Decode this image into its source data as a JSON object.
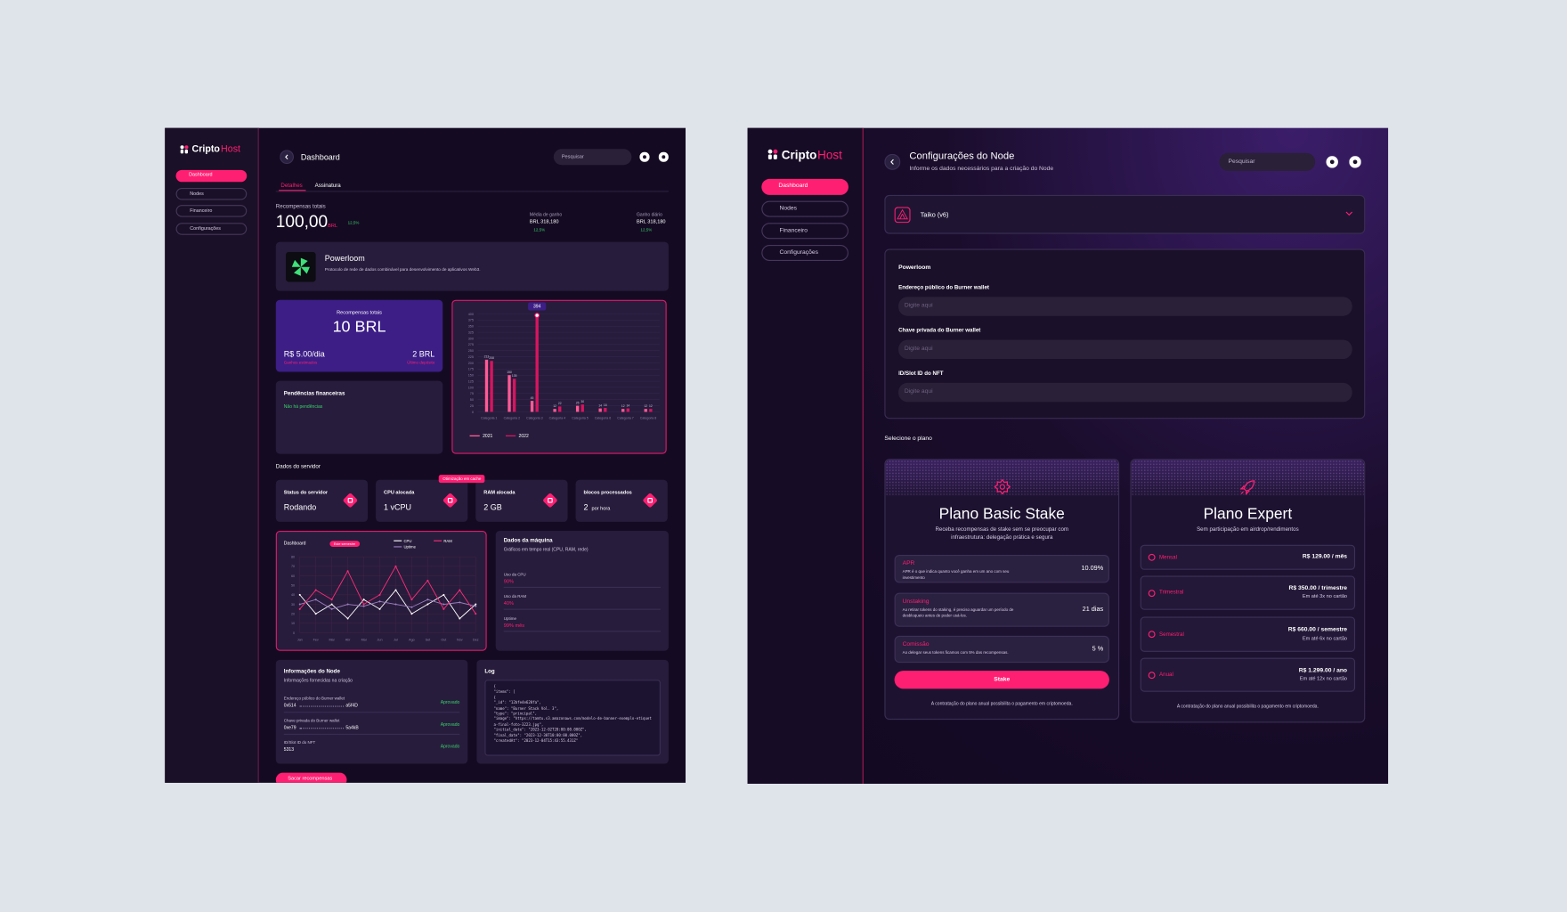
{
  "left": {
    "brand": {
      "name": "Cripto",
      "accent": "Host"
    },
    "nav": [
      "Dashboard",
      "Nodes",
      "Financeiro",
      "Configurações"
    ],
    "header": {
      "title": "Dashboard",
      "search": "Pesquisar"
    },
    "tabs": [
      "Detalhes",
      "Assinatura"
    ],
    "summary": {
      "label": "Recompensas totais",
      "value": "100,00",
      "unit": "BRL",
      "change": "12,5%",
      "stats": [
        {
          "label": "Média de ganho",
          "value": "BRL 318,180",
          "change": "12,5%"
        },
        {
          "label": "Ganho diário",
          "value": "BRL 318,180",
          "change": "12,5%"
        }
      ]
    },
    "project": {
      "name": "Powerloom",
      "description": "Protocolo de rede de dados combinável para desenvolvimento de aplicativos Web3."
    },
    "rewards": {
      "label": "Recompensas totais",
      "value": "10 BRL",
      "per_day": "R$ 5.00/dia",
      "per_day_note": "Ganhos estimados",
      "last": "2 BRL",
      "last_note": "Último depósito"
    },
    "pending": {
      "title": "Pendências financeiras",
      "status": "Não há pendências"
    },
    "bar_chart": {
      "type": "bar",
      "categories": [
        "Categoria 1",
        "Categoria 2",
        "Categoria 3",
        "Categoria 4",
        "Categoria 5",
        "Categoria 6",
        "Categoria 7",
        "Categoria 8"
      ],
      "series": [
        {
          "name": "2021",
          "color": "#ff5a96",
          "values": [
            213,
            150,
            45,
            12,
            25,
            14,
            12,
            12
          ]
        },
        {
          "name": "2022",
          "color": "#d8145f",
          "values": [
            208,
            135,
            394,
            22,
            30,
            16,
            14,
            12
          ]
        }
      ],
      "ylim": [
        0,
        400
      ],
      "yticks": [
        0,
        25,
        50,
        75,
        100,
        125,
        150,
        175,
        200,
        225,
        250,
        275,
        300,
        325,
        350,
        375,
        400
      ],
      "grid": true
    },
    "server": {
      "title": "Dados do servidor",
      "badge": "Otimização em cache",
      "cards": [
        {
          "label": "Status do servidor",
          "value": "Rodando"
        },
        {
          "label": "CPU alocada",
          "value": "1 vCPU"
        },
        {
          "label": "RAM alocada",
          "value": "2 GB"
        },
        {
          "label": "blocos processados",
          "value": "2",
          "unit": "por hora"
        }
      ]
    },
    "line_chart": {
      "type": "line",
      "title": "Dashboard",
      "period": "Este semestre",
      "categories": [
        "Jan",
        "Fev",
        "Mar",
        "Abr",
        "Mai",
        "Jun",
        "Jul",
        "Ago",
        "Set",
        "Out",
        "Nov",
        "Dez"
      ],
      "series": [
        {
          "name": "CPU",
          "color": "#ffffff",
          "values": [
            40,
            20,
            30,
            15,
            35,
            25,
            45,
            20,
            30,
            40,
            15,
            30
          ]
        },
        {
          "name": "Uptime",
          "color": "#9b7fc0",
          "values": [
            30,
            35,
            25,
            30,
            28,
            33,
            30,
            27,
            35,
            30,
            32,
            28
          ]
        },
        {
          "name": "RAM",
          "color": "#ff2d7a",
          "values": [
            25,
            45,
            35,
            65,
            30,
            40,
            70,
            35,
            55,
            25,
            45,
            20
          ]
        }
      ],
      "ylim": [
        0,
        80
      ],
      "yticks": [
        0,
        10,
        20,
        30,
        40,
        50,
        60,
        70,
        80
      ],
      "grid": true
    },
    "machine": {
      "title": "Dados da máquina",
      "subtitle": "Gráficos em tempo real (CPU, RAM, rede)",
      "rows": [
        {
          "label": "Uso da CPU",
          "value": "90%"
        },
        {
          "label": "Uso da RAM",
          "value": "40%"
        },
        {
          "label": "Uptime",
          "value": "99% mês"
        }
      ]
    },
    "node_info": {
      "title": "Informações do Node",
      "subtitle": "Informações fornecidas na criação",
      "rows": [
        {
          "label": "Endereço público do Burner wallet",
          "value": "0x514",
          "end": "a5f4D",
          "status": "Aprovado"
        },
        {
          "label": "Chave privada do Burner wallet",
          "value": "0xe79",
          "end": "5a4kB",
          "status": "Aprovado"
        },
        {
          "label": "ID/Slot ID do NFT",
          "value": "5313",
          "status": "Aprovado"
        }
      ]
    },
    "log": {
      "title": "Log",
      "lines": [
        "{",
        "\"items\": [",
        "{",
        "\"_id\": \"12bfe4e620fa\",",
        "\"name\": \"Burner Stack Vol. 3\",",
        "\"type\": \"principal\",",
        "\"image\": \"https://tamtu.s3.amazonaws.com/modelo-de-banner-exemplo-etiqueta-final-foto-3223.jpg\",",
        "\"initial_date\": \"2023-12-02T20:00:00.000Z\",",
        "\"final_date\": \"2023-12-30T10:00:00.000Z\",",
        "\"createdAt\": \"2023-12-04T15:43:55.431Z\""
      ]
    },
    "withdraw": "Sacar recompensas"
  },
  "right": {
    "brand": {
      "name": "Cripto",
      "accent": "Host"
    },
    "nav": [
      "Dashboard",
      "Nodes",
      "Financeiro",
      "Configurações"
    ],
    "header": {
      "title": "Configurações do Node",
      "subtitle": "Informe os dados necessários para a criação do Node",
      "search": "Pesquisar"
    },
    "select": "Taiko (v6)",
    "form": {
      "title": "Powerloom",
      "fields": [
        {
          "label": "Endereço público do Burner wallet",
          "placeholder": "Digite aqui"
        },
        {
          "label": "Chave privada do Burner wallet",
          "placeholder": "Digite aqui"
        },
        {
          "label": "ID/Slot ID do NFT",
          "placeholder": "Digite aqui"
        }
      ]
    },
    "plans_title": "Selecione o plano",
    "basic": {
      "title": "Plano Basic Stake",
      "description": "Receba recompensas de stake sem se preocupar com infraestrutura: delegação prática e segura",
      "rows": [
        {
          "name": "APR",
          "description": "APR é o que indica quanto você ganha em um ano com seu investimento",
          "value": "10.09%"
        },
        {
          "name": "Unstaking",
          "description": "Ao retirar tokens do staking, é preciso aguardar um período de desbloqueio antes de poder usá-los.",
          "value": "21 dias"
        },
        {
          "name": "Comissão",
          "description": "Ao delegar seus tokens ficamos com 5% das recompensas.",
          "value": "5 %"
        }
      ],
      "button": "Stake",
      "note": "A contratação do plano anual possibilita o pagamento em criptomoeda."
    },
    "expert": {
      "title": "Plano Expert",
      "description": "Sem participação em airdrop/rendimentos",
      "options": [
        {
          "name": "Mensal",
          "price": "R$ 129.00 / mês"
        },
        {
          "name": "Trimestral",
          "price": "R$ 350.00 / trimestre",
          "installments": "Em até 3x no cartão"
        },
        {
          "name": "Semestral",
          "price": "R$ 660.00 / semestre",
          "installments": "Em até 6x no cartão"
        },
        {
          "name": "Anual",
          "price": "R$ 1.299.00 / ano",
          "installments": "Em até 12x no cartão"
        }
      ],
      "note": "A contratação do plano anual possibilita o pagamento em criptomoeda."
    }
  }
}
